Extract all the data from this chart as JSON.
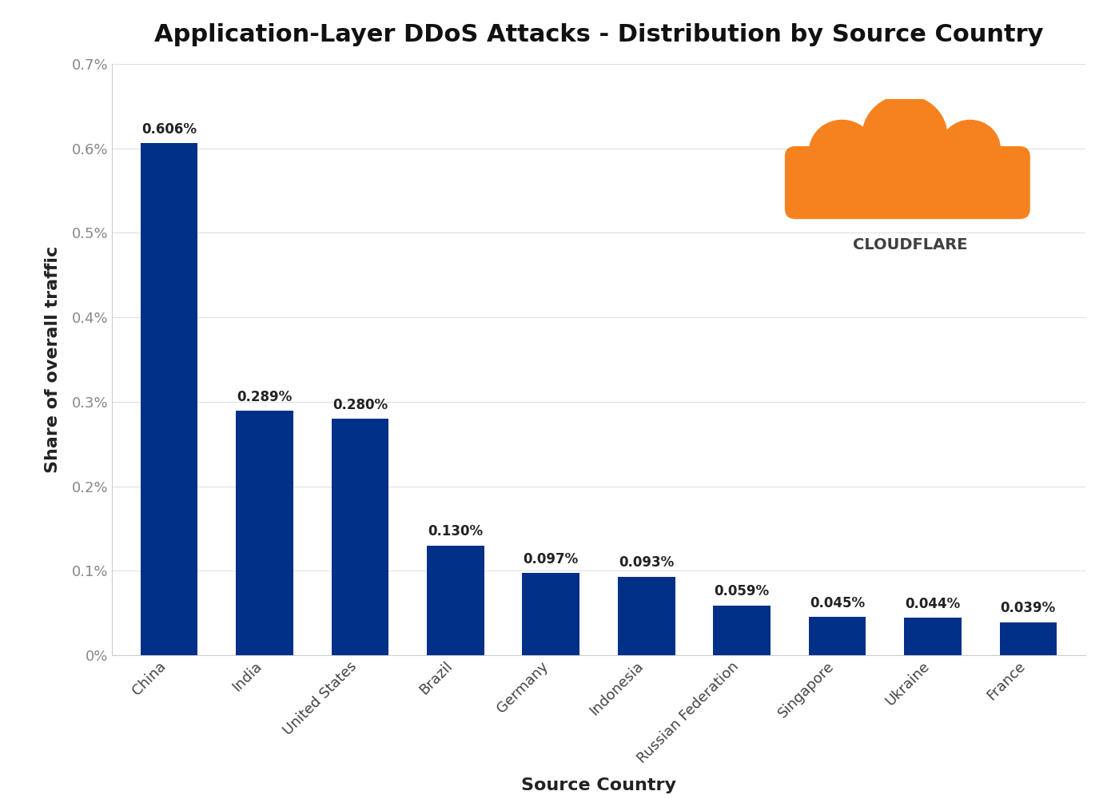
{
  "title": "Application-Layer DDoS Attacks - Distribution by Source Country",
  "xlabel": "Source Country",
  "ylabel": "Share of overall traffic",
  "categories": [
    "China",
    "India",
    "United States",
    "Brazil",
    "Germany",
    "Indonesia",
    "Russian Federation",
    "Singapore",
    "Ukraine",
    "France"
  ],
  "values": [
    0.00606,
    0.00289,
    0.0028,
    0.0013,
    0.00097,
    0.00093,
    0.00059,
    0.00045,
    0.00044,
    0.00039
  ],
  "labels": [
    "0.606%",
    "0.289%",
    "0.280%",
    "0.130%",
    "0.097%",
    "0.093%",
    "0.059%",
    "0.045%",
    "0.044%",
    "0.039%"
  ],
  "bar_color": "#003087",
  "background_color": "#ffffff",
  "ylim_max": 0.007,
  "ytick_vals": [
    0.0,
    0.001,
    0.002,
    0.003,
    0.004,
    0.005,
    0.006,
    0.007
  ],
  "ytick_labels": [
    "0%",
    "0.1%",
    "0.2%",
    "0.3%",
    "0.4%",
    "0.5%",
    "0.6%",
    "0.7%"
  ],
  "title_fontsize": 22,
  "axis_label_fontsize": 16,
  "tick_fontsize": 13,
  "bar_label_fontsize": 12,
  "grid_color": "#e0e0e0",
  "cloudflare_text": "CLOUDFLARE",
  "cloudflare_text_color": "#404040",
  "cloud_orange": "#F6821F",
  "cloud_orange_dark": "#FBAD41"
}
